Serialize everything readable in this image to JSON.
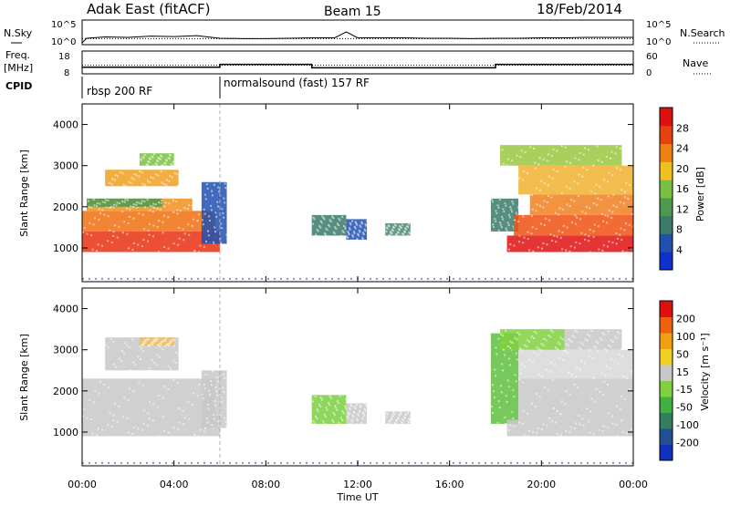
{
  "header": {
    "title": "Adak East (fitACF)",
    "beam": "Beam 15",
    "date": "18/Feb/2014"
  },
  "panels": {
    "nsky": {
      "label": "N.Sky",
      "ticks": [
        "10^5",
        "10^0"
      ]
    },
    "nsearch": {
      "label": "N.Search",
      "ticks": [
        "10^5",
        "10^0"
      ]
    },
    "freq": {
      "label_line1": "Freq.",
      "label_line2": "[MHz]",
      "ticks": [
        "18",
        "8"
      ]
    },
    "nave": {
      "label": "Nave",
      "ticks": [
        "60",
        "0"
      ]
    },
    "cpid": {
      "label": "CPID",
      "entries": [
        {
          "text": "rbsp 200 RF",
          "start_hour": 0
        },
        {
          "text": "normalsound (fast) 157 RF",
          "start_hour": 6
        }
      ]
    }
  },
  "chart_data": [
    {
      "type": "line",
      "title": "N.Sky / N.Search",
      "x_hours": [
        0,
        0.2,
        1,
        2,
        3,
        4,
        5,
        6,
        7,
        8,
        9,
        10,
        11,
        11.5,
        12,
        13,
        14,
        15,
        16,
        17,
        18,
        19,
        20,
        21,
        22,
        23,
        24
      ],
      "nsky_log10": [
        0,
        1.1,
        1.4,
        1.3,
        1.6,
        1.5,
        1.7,
        1.1,
        1.0,
        1.0,
        1.1,
        1.2,
        1.2,
        2.6,
        1.2,
        1.2,
        1.2,
        1.1,
        1.1,
        1.0,
        1.1,
        1.1,
        1.2,
        1.2,
        1.3,
        1.3,
        1.3
      ],
      "nsearch_log10": [
        1.0,
        1.0,
        1.0,
        1.0,
        1.0,
        1.0,
        1.0,
        1.0,
        1.0,
        1.0,
        1.0,
        1.0,
        1.0,
        1.0,
        1.0,
        1.0,
        1.0,
        1.0,
        1.0,
        1.0,
        1.0,
        1.0,
        1.0,
        1.0,
        1.0,
        1.0,
        1.0
      ],
      "ylim_log10": [
        0,
        5
      ]
    },
    {
      "type": "line",
      "title": "Freq / Nave",
      "freq_mhz_steps": [
        {
          "start": 0,
          "end": 6,
          "value": 10.5
        },
        {
          "start": 6,
          "end": 10,
          "value": 12.0
        },
        {
          "start": 10,
          "end": 18,
          "value": 10.2
        },
        {
          "start": 18,
          "end": 24,
          "value": 12.0
        }
      ],
      "nave_steps": [
        {
          "start": 0,
          "end": 6,
          "value": 21
        },
        {
          "start": 6,
          "end": 24,
          "value": 21
        }
      ],
      "freq_ylim": [
        8,
        18
      ],
      "nave_ylim": [
        0,
        60
      ]
    },
    {
      "type": "heatmap",
      "title": "Power",
      "ylabel": "Slant Range [km]",
      "colorbar_label": "Power [dB]",
      "colorbar_ticks": [
        "28",
        "24",
        "20",
        "16",
        "12",
        "8",
        "4"
      ],
      "colorbar_colors": [
        "#1030d0",
        "#2050b0",
        "#3a7a6a",
        "#4a9a50",
        "#7ac040",
        "#f0c020",
        "#f08010",
        "#e84010",
        "#e01010"
      ],
      "yticks": [
        "4000",
        "3000",
        "2000",
        "1000"
      ],
      "ylim": [
        180,
        4500
      ],
      "bands": [
        {
          "h0": 0.0,
          "h1": 6.0,
          "r0": 900,
          "r1": 1400,
          "color": "#e83010"
        },
        {
          "h0": 0.0,
          "h1": 5.8,
          "r0": 1400,
          "r1": 1900,
          "color": "#f07010"
        },
        {
          "h0": 0.2,
          "h1": 4.8,
          "r0": 1900,
          "r1": 2200,
          "color": "#f09020"
        },
        {
          "h0": 1.0,
          "h1": 4.2,
          "r0": 2500,
          "r1": 2900,
          "color": "#f0a020"
        },
        {
          "h0": 2.5,
          "h1": 4.0,
          "r0": 3000,
          "r1": 3300,
          "color": "#7ac040"
        },
        {
          "h0": 0.2,
          "h1": 3.5,
          "r0": 2000,
          "r1": 2200,
          "color": "#4a9a50"
        },
        {
          "h0": 5.2,
          "h1": 6.3,
          "r0": 1100,
          "r1": 2600,
          "color": "#2050b0"
        },
        {
          "h0": 10.0,
          "h1": 11.5,
          "r0": 1300,
          "r1": 1800,
          "color": "#3a7a6a"
        },
        {
          "h0": 11.5,
          "h1": 12.4,
          "r0": 1200,
          "r1": 1700,
          "color": "#2050b0"
        },
        {
          "h0": 13.2,
          "h1": 14.3,
          "r0": 1300,
          "r1": 1600,
          "color": "#4a8a70"
        },
        {
          "h0": 17.8,
          "h1": 19.0,
          "r0": 1400,
          "r1": 2200,
          "color": "#3a7a6a"
        },
        {
          "h0": 18.5,
          "h1": 24.0,
          "r0": 900,
          "r1": 1300,
          "color": "#e01010"
        },
        {
          "h0": 18.8,
          "h1": 24.0,
          "r0": 1300,
          "r1": 1800,
          "color": "#f05010"
        },
        {
          "h0": 19.5,
          "h1": 24.0,
          "r0": 1800,
          "r1": 2300,
          "color": "#f08020"
        },
        {
          "h0": 19.0,
          "h1": 24.0,
          "r0": 2300,
          "r1": 3000,
          "color": "#f0b030"
        },
        {
          "h0": 18.2,
          "h1": 23.5,
          "r0": 3000,
          "r1": 3500,
          "color": "#9ac840"
        }
      ]
    },
    {
      "type": "heatmap",
      "title": "Velocity",
      "ylabel": "Slant Range [km]",
      "xlabel": "Time UT",
      "colorbar_label": "Velocity [m s⁻¹]",
      "colorbar_ticks": [
        "200",
        "100",
        "50",
        "15",
        "-15",
        "-50",
        "-100",
        "-200"
      ],
      "colorbar_colors": [
        "#1030c0",
        "#205090",
        "#308060",
        "#40b040",
        "#80d040",
        "#c8c8c8",
        "#f0d020",
        "#f0a010",
        "#f06010",
        "#e01010"
      ],
      "xticks": [
        "00:00",
        "04:00",
        "08:00",
        "12:00",
        "16:00",
        "20:00",
        "00:00"
      ],
      "yticks": [
        "4000",
        "3000",
        "2000",
        "1000"
      ],
      "ylim": [
        180,
        4500
      ],
      "bands": [
        {
          "h0": 0.0,
          "h1": 6.0,
          "r0": 900,
          "r1": 1400,
          "color": "#c8c8c8"
        },
        {
          "h0": 0.0,
          "h1": 5.8,
          "r0": 1400,
          "r1": 2300,
          "color": "#c8c8c8"
        },
        {
          "h0": 1.0,
          "h1": 4.2,
          "r0": 2500,
          "r1": 3300,
          "color": "#c8c8c8"
        },
        {
          "h0": 2.5,
          "h1": 4.0,
          "r0": 3100,
          "r1": 3300,
          "color": "#f0c060"
        },
        {
          "h0": 5.2,
          "h1": 6.3,
          "r0": 1100,
          "r1": 2500,
          "color": "#c8c8c8"
        },
        {
          "h0": 10.0,
          "h1": 11.5,
          "r0": 1200,
          "r1": 1900,
          "color": "#7ad040"
        },
        {
          "h0": 11.5,
          "h1": 12.4,
          "r0": 1200,
          "r1": 1700,
          "color": "#c8c8c8"
        },
        {
          "h0": 13.2,
          "h1": 14.3,
          "r0": 1200,
          "r1": 1500,
          "color": "#c8c8c8"
        },
        {
          "h0": 17.8,
          "h1": 19.0,
          "r0": 1200,
          "r1": 3400,
          "color": "#60c040"
        },
        {
          "h0": 18.5,
          "h1": 24.0,
          "r0": 900,
          "r1": 1300,
          "color": "#c8c8c8"
        },
        {
          "h0": 19.0,
          "h1": 24.0,
          "r0": 1300,
          "r1": 2300,
          "color": "#c8c8c8"
        },
        {
          "h0": 19.0,
          "h1": 24.0,
          "r0": 2300,
          "r1": 3000,
          "color": "#d8d8d8"
        },
        {
          "h0": 18.2,
          "h1": 21.0,
          "r0": 3000,
          "r1": 3500,
          "color": "#80d040"
        },
        {
          "h0": 21.0,
          "h1": 23.5,
          "r0": 3000,
          "r1": 3500,
          "color": "#c8c8c8"
        }
      ]
    }
  ]
}
